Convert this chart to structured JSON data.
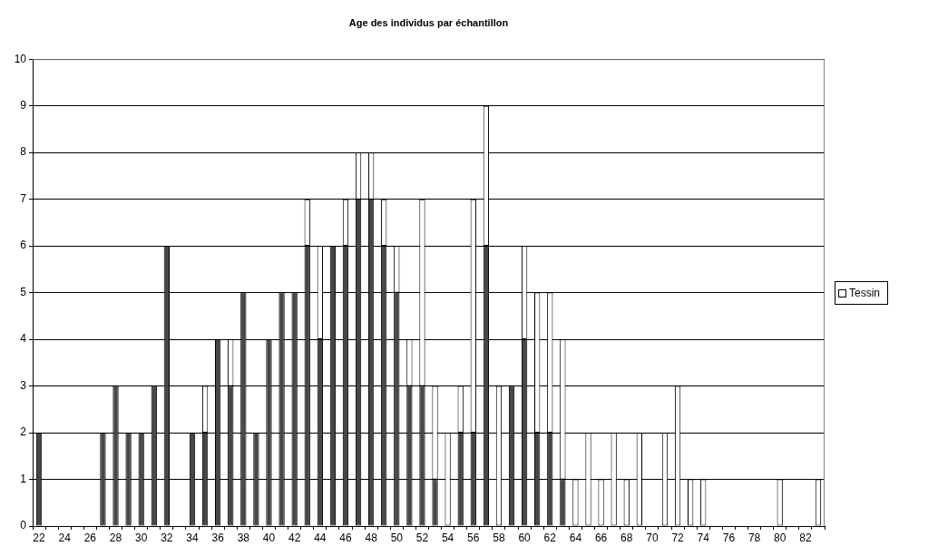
{
  "chart_data": {
    "type": "bar",
    "title": "Age des individus par échantillon",
    "categories": [
      "22",
      null,
      "24",
      null,
      "26",
      null,
      "28",
      null,
      "30",
      null,
      "32",
      null,
      "34",
      null,
      "36",
      null,
      "38",
      null,
      "40",
      null,
      "42",
      null,
      "44",
      null,
      "46",
      null,
      "48",
      null,
      "50",
      null,
      "52",
      null,
      "54",
      null,
      "56",
      null,
      "58",
      null,
      "60",
      null,
      "62",
      null,
      "64",
      null,
      "66",
      null,
      "68",
      null,
      "70",
      null,
      "72",
      null,
      "74",
      null,
      "76",
      null,
      "78",
      null,
      "80",
      null,
      "82",
      null
    ],
    "stacked": true,
    "series": [
      {
        "color": "#474747",
        "values": [
          2,
          0,
          0,
          0,
          0,
          2,
          3,
          2,
          2,
          3,
          6,
          0,
          2,
          2,
          4,
          3,
          5,
          2,
          4,
          5,
          5,
          6,
          4,
          6,
          6,
          7,
          7,
          6,
          5,
          3,
          3,
          1,
          0,
          2,
          2,
          6,
          0,
          3,
          4,
          2,
          2,
          1,
          0,
          0,
          0,
          0,
          0,
          0,
          0,
          0,
          0,
          0,
          0,
          0,
          0,
          0,
          0,
          0,
          0,
          0,
          0,
          0
        ]
      },
      {
        "name": "Tessin",
        "color": "#ffffff",
        "values": [
          0,
          0,
          0,
          0,
          0,
          0,
          0,
          0,
          0,
          0,
          0,
          0,
          0,
          1,
          0,
          1,
          0,
          0,
          0,
          0,
          0,
          1,
          2,
          0,
          1,
          1,
          1,
          1,
          1,
          1,
          4,
          2,
          2,
          1,
          5,
          3,
          3,
          0,
          2,
          3,
          3,
          3,
          1,
          2,
          1,
          2,
          1,
          2,
          0,
          2,
          3,
          1,
          1,
          0,
          0,
          0,
          0,
          0,
          1,
          0,
          0,
          1
        ]
      }
    ],
    "ylim": [
      0,
      10
    ],
    "yticks": [
      0,
      1,
      2,
      3,
      4,
      5,
      6,
      7,
      8,
      9,
      10
    ],
    "grid": "y",
    "legend": "right"
  }
}
